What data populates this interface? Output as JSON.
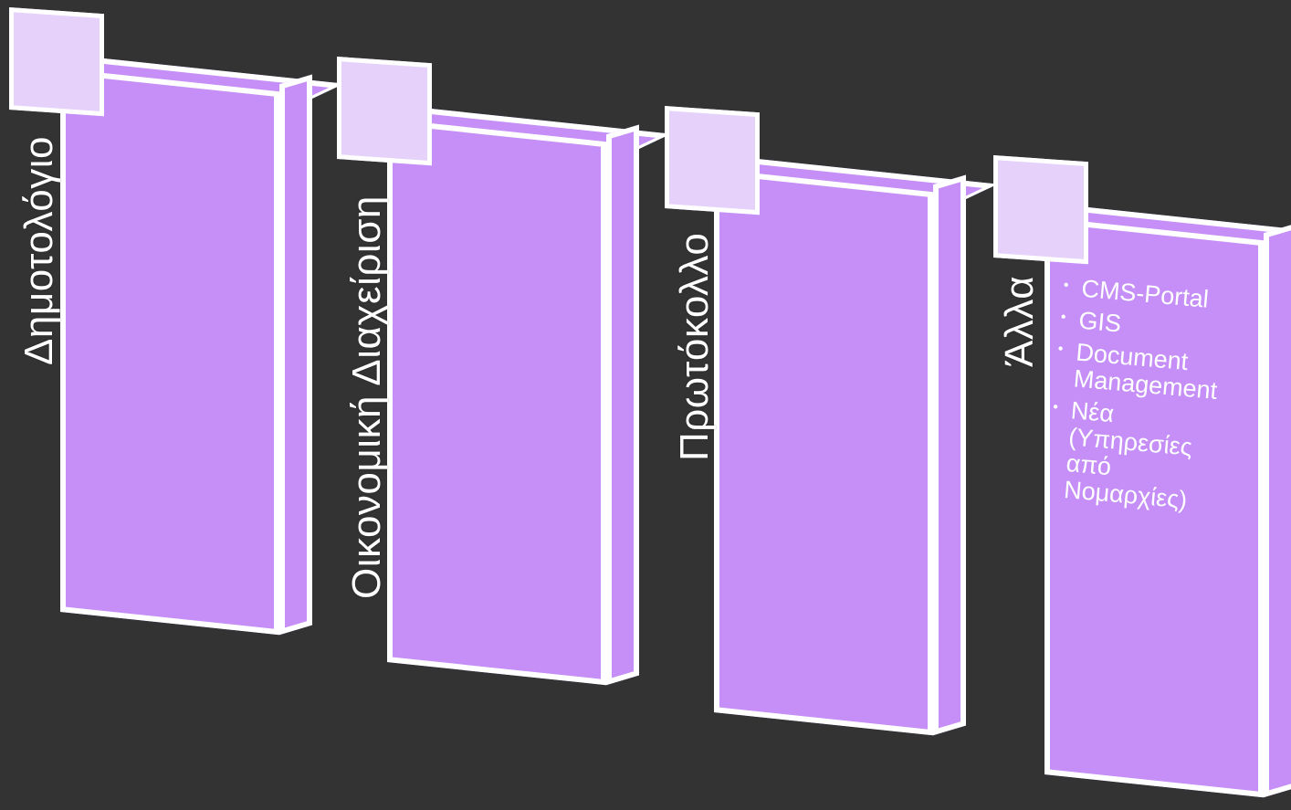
{
  "colors": {
    "background": "#333333",
    "card_fill": "#c58ff7",
    "tab_fill": "#e6d1fb",
    "border": "#ffffff",
    "text": "#ffffff"
  },
  "columns": [
    {
      "label": "Δημοτολόγιο"
    },
    {
      "label": "Οικονομική Διαχείριση"
    },
    {
      "label": "Πρωτόκολλο"
    },
    {
      "label": "Άλλα",
      "items": [
        "CMS-Portal",
        "GIS",
        "Document Management",
        "Νέα (Υπηρεσίες από Νομαρχίες)"
      ]
    }
  ]
}
